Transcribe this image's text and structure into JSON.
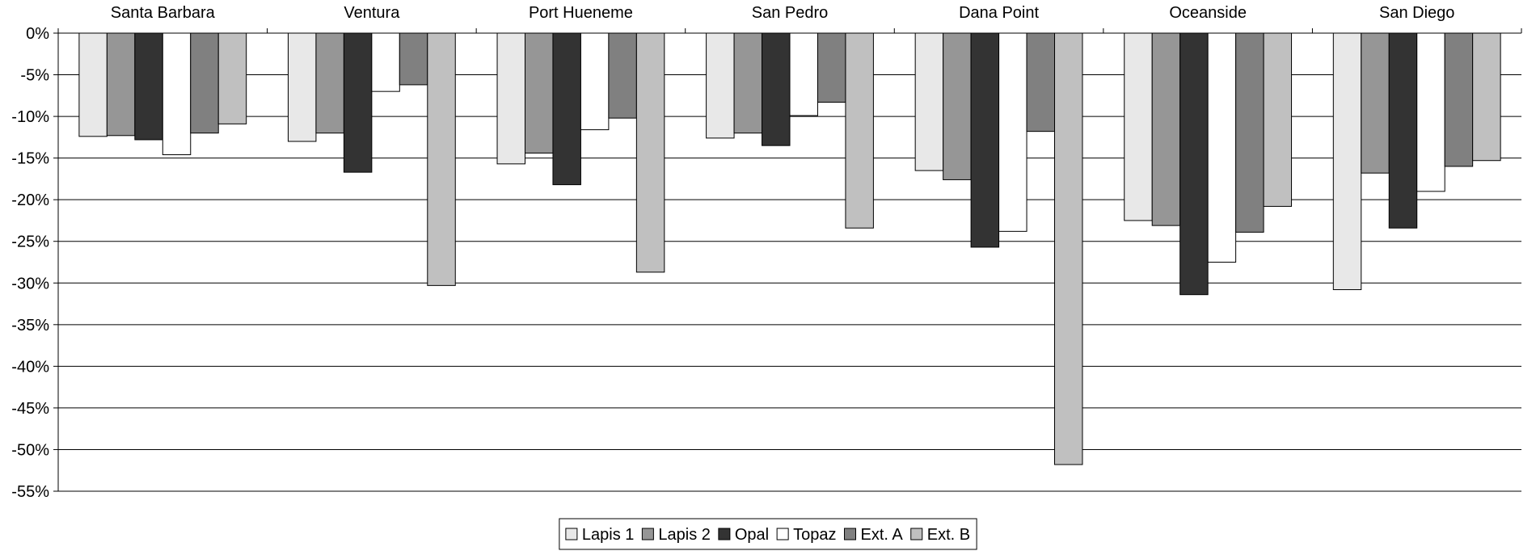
{
  "chart_data": {
    "type": "bar",
    "title": "",
    "xlabel": "",
    "ylabel": "",
    "ylim": [
      -55,
      0
    ],
    "ytick_step": 5,
    "ytick_suffix": "%",
    "category_axis_position": "top",
    "grid": true,
    "legend_position": "bottom-center",
    "categories": [
      "Santa Barbara",
      "Ventura",
      "Port Hueneme",
      "San Pedro",
      "Dana Point",
      "Oceanside",
      "San Diego"
    ],
    "series": [
      {
        "name": "Lapis 1",
        "color": "#e8e8e8",
        "values": [
          -12.4,
          -13.0,
          -15.7,
          -12.6,
          -16.5,
          -22.5,
          -30.8
        ]
      },
      {
        "name": "Lapis 2",
        "color": "#969696",
        "values": [
          -12.3,
          -12.0,
          -14.4,
          -12.0,
          -17.6,
          -23.1,
          -16.8
        ]
      },
      {
        "name": "Opal",
        "color": "#333333",
        "values": [
          -12.8,
          -16.7,
          -18.2,
          -13.5,
          -25.7,
          -31.4,
          -23.4
        ]
      },
      {
        "name": "Topaz",
        "color": "#ffffff",
        "values": [
          -14.6,
          -7.0,
          -11.6,
          -9.9,
          -23.8,
          -27.5,
          -19.0
        ]
      },
      {
        "name": "Ext. A",
        "color": "#808080",
        "values": [
          -12.0,
          -6.2,
          -10.2,
          -8.3,
          -11.8,
          -23.9,
          -16.0
        ]
      },
      {
        "name": "Ext. B",
        "color": "#c0c0c0",
        "values": [
          -10.9,
          -30.3,
          -28.7,
          -23.4,
          -51.8,
          -20.8,
          -15.3
        ]
      }
    ]
  }
}
